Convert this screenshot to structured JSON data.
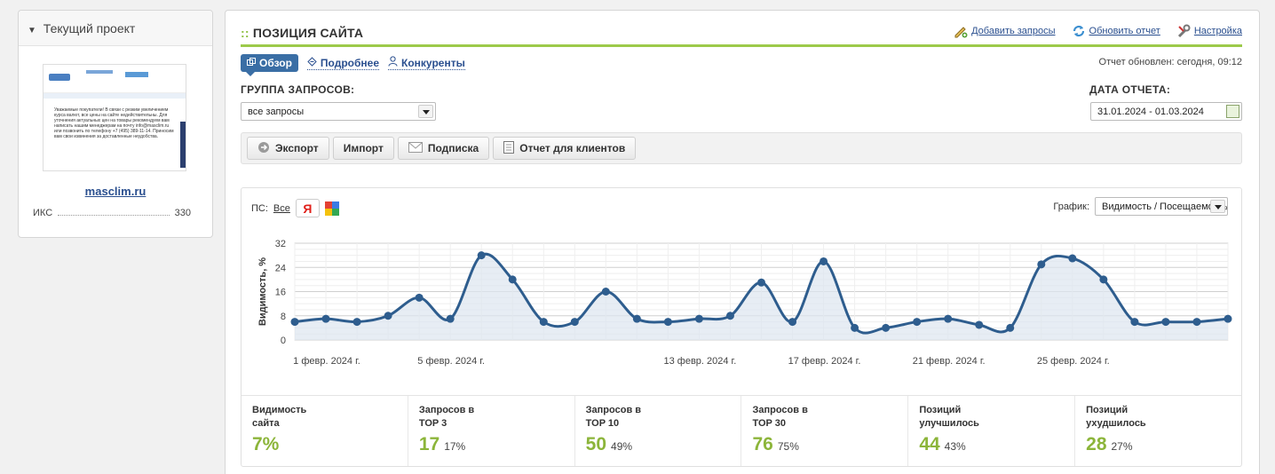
{
  "project": {
    "header": "Текущий проект",
    "site": "masclim.ru",
    "iks_label": "ИКС",
    "iks_value": "330",
    "thumb_text": "Уважаемые покупатели! В связи с резким увеличением курса валют, все цены на сайте недействительны. Для уточнения актуальных цен на товары рекомендуем вам написать нашим менеджерам на почту info@masclim.ru или позвонить по телефону +7 (495) 389-11-14. Приносим вам свои извинения за доставленные неудобства."
  },
  "main": {
    "title_prefix": "::",
    "title": "ПОЗИЦИЯ САЙТА",
    "actions": {
      "add": "Добавить запросы",
      "refresh": "Обновить отчет",
      "settings": "Настройка"
    },
    "tabs": {
      "overview": "Обзор",
      "details": "Подробнее",
      "competitors": "Конкуренты"
    },
    "updated": "Отчет обновлен: сегодня, 09:12",
    "group_label": "ГРУППА ЗАПРОСОВ:",
    "group_value": "все запросы",
    "date_label": "ДАТА ОТЧЕТА:",
    "date_value": "31.01.2024 - 01.03.2024",
    "toolbar": {
      "export": "Экспорт",
      "import": "Импорт",
      "subscribe": "Подписка",
      "client_report": "Отчет для клиентов"
    },
    "ps_label": "ПС:",
    "ps_all": "Все",
    "ya_label": "Я",
    "graph_label": "График:",
    "graph_value": "Видимость / Посещаемость"
  },
  "chart_data": {
    "type": "line",
    "ylabel": "Видимость, %",
    "ylim": [
      0,
      32
    ],
    "yticks": [
      0,
      8,
      16,
      24,
      32
    ],
    "x_labels": [
      {
        "index": 0,
        "label": "1 февр. 2024 г."
      },
      {
        "index": 4,
        "label": "5 февр. 2024 г."
      },
      {
        "index": 12,
        "label": "13 февр. 2024 г."
      },
      {
        "index": 16,
        "label": "17 февр. 2024 г."
      },
      {
        "index": 20,
        "label": "21 февр. 2024 г."
      },
      {
        "index": 24,
        "label": "25 февр. 2024 г."
      }
    ],
    "series": [
      {
        "values": [
          6,
          7,
          6,
          8,
          14,
          7,
          28,
          20,
          6,
          6,
          16,
          7,
          6,
          7,
          8,
          19,
          6,
          26,
          4,
          4,
          6,
          7,
          5,
          4,
          25,
          27,
          20,
          6,
          6,
          6,
          7
        ],
        "color": "#2e5d8e"
      }
    ]
  },
  "stats": [
    {
      "name": "Видимость\nсайта",
      "value": "7%",
      "pct": ""
    },
    {
      "name": "Запросов в\nTOP 3",
      "value": "17",
      "pct": "17%"
    },
    {
      "name": "Запросов в\nTOP 10",
      "value": "50",
      "pct": "49%"
    },
    {
      "name": "Запросов в\nTOP 30",
      "value": "76",
      "pct": "75%"
    },
    {
      "name": "Позиций\nулучшилось",
      "value": "44",
      "pct": "43%"
    },
    {
      "name": "Позиций\nухудшилось",
      "value": "28",
      "pct": "27%"
    }
  ]
}
